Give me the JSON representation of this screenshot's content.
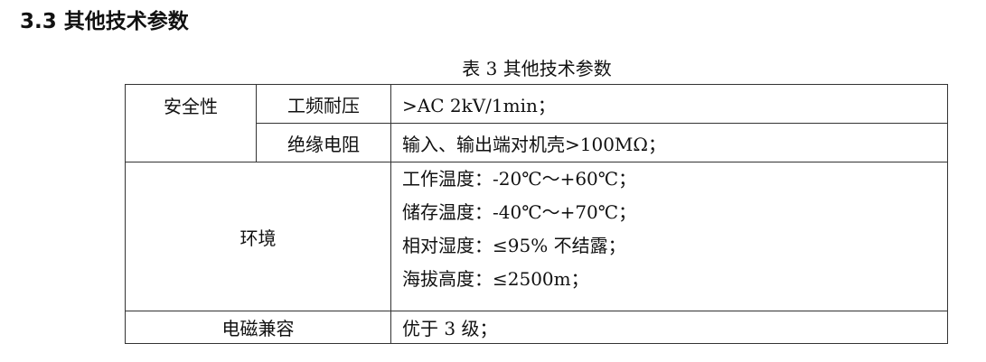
{
  "heading": "3.3 其他技术参数",
  "caption": "表 3 其他技术参数",
  "table": {
    "safety": {
      "label": "安全性",
      "rows": [
        {
          "name": "工频耐压",
          "value": ">AC 2kV/1min；"
        },
        {
          "name": "绝缘电阻",
          "value": "输入、输出端对机壳>100MΩ；"
        }
      ]
    },
    "environment": {
      "label": "环境",
      "lines": [
        "工作温度：-20℃～+60℃；",
        "储存温度：-40℃～+70℃；",
        "相对湿度：≤95% 不结露；",
        "海拔高度：≤2500m；"
      ]
    },
    "emc": {
      "label": "电磁兼容",
      "value": "优于 3 级；"
    }
  }
}
